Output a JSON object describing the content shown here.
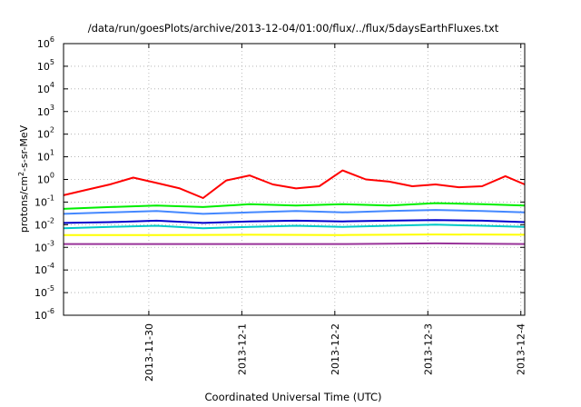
{
  "chart_data": {
    "type": "line",
    "title": "/data/run/goesPlots/archive/2013-12-04/01:00/flux/../flux/5daysEarthFluxes.txt",
    "xlabel": "Coordinated Universal Time (UTC)",
    "ylabel": {
      "base": "protons/cm",
      "sup": "2",
      "rest": "-s-sr-MeV"
    },
    "x_range": [
      "2013-11-29 02:00",
      "2013-12-04 01:00"
    ],
    "x_ticks": [
      {
        "date": "2013-11-30 00:00",
        "label": "2013-11-30"
      },
      {
        "date": "2013-12-01 00:00",
        "label": "2013-12-1"
      },
      {
        "date": "2013-12-02 00:00",
        "label": "2013-12-2"
      },
      {
        "date": "2013-12-03 00:00",
        "label": "2013-12-3"
      },
      {
        "date": "2013-12-04 00:00",
        "label": "2013-12-4"
      }
    ],
    "y_scale": "log",
    "ylim": [
      1e-06,
      1000000.0
    ],
    "y_ticks": [
      {
        "value": 1e-06,
        "base": "10",
        "exp": "-6"
      },
      {
        "value": 1e-05,
        "base": "10",
        "exp": "-5"
      },
      {
        "value": 0.0001,
        "base": "10",
        "exp": "-4"
      },
      {
        "value": 0.001,
        "base": "10",
        "exp": "-3"
      },
      {
        "value": 0.01,
        "base": "10",
        "exp": "-2"
      },
      {
        "value": 0.1,
        "base": "10",
        "exp": "-1"
      },
      {
        "value": 1,
        "base": "10",
        "exp": "0"
      },
      {
        "value": 10.0,
        "base": "10",
        "exp": "1"
      },
      {
        "value": 100.0,
        "base": "10",
        "exp": "2"
      },
      {
        "value": 1000.0,
        "base": "10",
        "exp": "3"
      },
      {
        "value": 10000.0,
        "base": "10",
        "exp": "4"
      },
      {
        "value": 100000.0,
        "base": "10",
        "exp": "5"
      },
      {
        "value": 1000000.0,
        "base": "10",
        "exp": "6"
      }
    ],
    "grid": true,
    "legend": "none",
    "series": [
      {
        "color": "#ff0000",
        "x": [
          "2013-11-29 02:00",
          "2013-11-29 08:00",
          "2013-11-29 14:00",
          "2013-11-29 20:00",
          "2013-11-30 02:00",
          "2013-11-30 08:00",
          "2013-11-30 14:00",
          "2013-11-30 20:00",
          "2013-12-01 02:00",
          "2013-12-01 08:00",
          "2013-12-01 14:00",
          "2013-12-01 20:00",
          "2013-12-02 02:00",
          "2013-12-02 08:00",
          "2013-12-02 14:00",
          "2013-12-02 20:00",
          "2013-12-03 02:00",
          "2013-12-03 08:00",
          "2013-12-03 14:00",
          "2013-12-03 20:00",
          "2013-12-04 01:00"
        ],
        "values": [
          0.2,
          0.35,
          0.6,
          1.2,
          0.7,
          0.4,
          0.15,
          0.9,
          1.5,
          0.6,
          0.4,
          0.5,
          2.5,
          1.0,
          0.8,
          0.5,
          0.6,
          0.45,
          0.5,
          1.4,
          0.6
        ]
      },
      {
        "color": "#00ee00",
        "x": [
          "2013-11-29 02:00",
          "2013-11-29 14:00",
          "2013-11-30 02:00",
          "2013-11-30 14:00",
          "2013-12-01 02:00",
          "2013-12-01 14:00",
          "2013-12-02 02:00",
          "2013-12-02 14:00",
          "2013-12-03 02:00",
          "2013-12-03 14:00",
          "2013-12-04 01:00"
        ],
        "values": [
          0.05,
          0.06,
          0.07,
          0.06,
          0.08,
          0.07,
          0.08,
          0.07,
          0.09,
          0.08,
          0.07
        ]
      },
      {
        "color": "#4488ff",
        "x": [
          "2013-11-29 02:00",
          "2013-11-29 14:00",
          "2013-11-30 02:00",
          "2013-11-30 14:00",
          "2013-12-01 02:00",
          "2013-12-01 14:00",
          "2013-12-02 02:00",
          "2013-12-02 14:00",
          "2013-12-03 02:00",
          "2013-12-03 14:00",
          "2013-12-04 01:00"
        ],
        "values": [
          0.03,
          0.035,
          0.04,
          0.03,
          0.035,
          0.04,
          0.035,
          0.04,
          0.045,
          0.04,
          0.035
        ]
      },
      {
        "color": "#0000cc",
        "x": [
          "2013-11-29 02:00",
          "2013-11-29 14:00",
          "2013-11-30 02:00",
          "2013-11-30 14:00",
          "2013-12-01 02:00",
          "2013-12-01 14:00",
          "2013-12-02 02:00",
          "2013-12-02 14:00",
          "2013-12-03 02:00",
          "2013-12-03 14:00",
          "2013-12-04 01:00"
        ],
        "values": [
          0.012,
          0.013,
          0.015,
          0.012,
          0.014,
          0.015,
          0.014,
          0.015,
          0.016,
          0.015,
          0.013
        ]
      },
      {
        "color": "#00c8c8",
        "x": [
          "2013-11-29 02:00",
          "2013-11-29 14:00",
          "2013-11-30 02:00",
          "2013-11-30 14:00",
          "2013-12-01 02:00",
          "2013-12-01 14:00",
          "2013-12-02 02:00",
          "2013-12-02 14:00",
          "2013-12-03 02:00",
          "2013-12-03 14:00",
          "2013-12-04 01:00"
        ],
        "values": [
          0.007,
          0.008,
          0.009,
          0.007,
          0.008,
          0.009,
          0.008,
          0.009,
          0.01,
          0.009,
          0.008
        ]
      },
      {
        "color": "#ffff00",
        "x": [
          "2013-11-29 02:00",
          "2013-11-30 02:00",
          "2013-12-01 02:00",
          "2013-12-02 02:00",
          "2013-12-03 02:00",
          "2013-12-04 01:00"
        ],
        "values": [
          0.0035,
          0.0035,
          0.0036,
          0.0035,
          0.0037,
          0.0036
        ]
      },
      {
        "color": "#993399",
        "x": [
          "2013-11-29 02:00",
          "2013-11-30 02:00",
          "2013-12-01 02:00",
          "2013-12-02 02:00",
          "2013-12-03 02:00",
          "2013-12-04 01:00"
        ],
        "values": [
          0.0014,
          0.0014,
          0.0014,
          0.0014,
          0.0015,
          0.0014
        ]
      }
    ]
  }
}
